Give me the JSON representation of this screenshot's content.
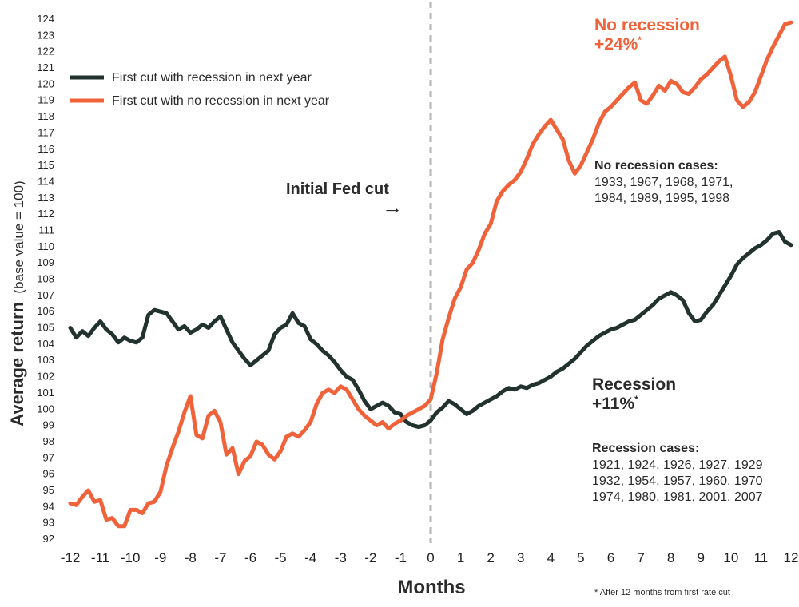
{
  "chart_data": {
    "type": "line",
    "xlabel": "Months",
    "ylabel": "Average return",
    "ylabel_note": "(base value = 100)",
    "xlim": [
      -12,
      12
    ],
    "ylim": [
      92,
      124
    ],
    "x_ticks": [
      "-12",
      "-11",
      "-10",
      "-9",
      "-8",
      "-7",
      "-6",
      "-5",
      "-4",
      "-3",
      "-2",
      "-1",
      "0",
      "1",
      "2",
      "3",
      "4",
      "5",
      "6",
      "7",
      "8",
      "9",
      "10",
      "11",
      "12"
    ],
    "y_ticks": [
      "92",
      "93",
      "94",
      "95",
      "96",
      "97",
      "98",
      "99",
      "100",
      "101",
      "102",
      "103",
      "104",
      "105",
      "106",
      "107",
      "108",
      "109",
      "110",
      "111",
      "112",
      "113",
      "114",
      "115",
      "116",
      "117",
      "118",
      "119",
      "120",
      "121",
      "122",
      "123",
      "124"
    ],
    "grid": false,
    "legend_position": "top-left",
    "reference_line": {
      "x": 0,
      "style": "dashed",
      "label": "Initial Fed cut"
    },
    "series": [
      {
        "name": "First cut with recession in next year",
        "color": "#22322f",
        "x": [
          -12,
          -11.8,
          -11.6,
          -11.4,
          -11.2,
          -11,
          -10.8,
          -10.6,
          -10.4,
          -10.2,
          -10,
          -9.8,
          -9.6,
          -9.4,
          -9.2,
          -9,
          -8.8,
          -8.6,
          -8.4,
          -8.2,
          -8,
          -7.8,
          -7.6,
          -7.4,
          -7.2,
          -7,
          -6.8,
          -6.6,
          -6.4,
          -6.2,
          -6,
          -5.8,
          -5.6,
          -5.4,
          -5.2,
          -5,
          -4.8,
          -4.6,
          -4.4,
          -4.2,
          -4,
          -3.8,
          -3.6,
          -3.4,
          -3.2,
          -3,
          -2.8,
          -2.6,
          -2.4,
          -2.2,
          -2,
          -1.8,
          -1.6,
          -1.4,
          -1.2,
          -1,
          -0.8,
          -0.6,
          -0.4,
          -0.2,
          0,
          0.2,
          0.4,
          0.6,
          0.8,
          1,
          1.2,
          1.4,
          1.6,
          1.8,
          2,
          2.2,
          2.4,
          2.6,
          2.8,
          3,
          3.2,
          3.4,
          3.6,
          3.8,
          4,
          4.2,
          4.4,
          4.6,
          4.8,
          5,
          5.2,
          5.4,
          5.6,
          5.8,
          6,
          6.2,
          6.4,
          6.6,
          6.8,
          7,
          7.2,
          7.4,
          7.6,
          7.8,
          8,
          8.2,
          8.4,
          8.6,
          8.8,
          9,
          9.2,
          9.4,
          9.6,
          9.8,
          10,
          10.2,
          10.4,
          10.6,
          10.8,
          11,
          11.2,
          11.4,
          11.6,
          11.8,
          12
        ],
        "values": [
          105.0,
          104.4,
          104.8,
          104.5,
          105.0,
          105.4,
          104.9,
          104.6,
          104.1,
          104.4,
          104.2,
          104.1,
          104.4,
          105.8,
          106.1,
          106.0,
          105.9,
          105.4,
          104.9,
          105.1,
          104.7,
          104.9,
          105.2,
          105.0,
          105.4,
          105.7,
          104.9,
          104.1,
          103.6,
          103.1,
          102.7,
          103.0,
          103.3,
          103.6,
          104.6,
          105.0,
          105.2,
          105.9,
          105.3,
          105.1,
          104.3,
          104.0,
          103.6,
          103.3,
          102.9,
          102.4,
          102.0,
          101.8,
          101.2,
          100.5,
          100.0,
          100.2,
          100.4,
          100.2,
          99.8,
          99.7,
          99.2,
          99.0,
          98.9,
          99.0,
          99.3,
          99.8,
          100.1,
          100.5,
          100.3,
          100.0,
          99.7,
          99.9,
          100.2,
          100.4,
          100.6,
          100.8,
          101.1,
          101.3,
          101.2,
          101.4,
          101.3,
          101.5,
          101.6,
          101.8,
          102.0,
          102.3,
          102.5,
          102.8,
          103.1,
          103.5,
          103.9,
          104.2,
          104.5,
          104.7,
          104.9,
          105.0,
          105.2,
          105.4,
          105.5,
          105.8,
          106.1,
          106.4,
          106.8,
          107.0,
          107.2,
          107.0,
          106.7,
          105.9,
          105.4,
          105.5,
          106.0,
          106.4,
          107.0,
          107.6,
          108.2,
          108.9,
          109.3,
          109.6,
          109.9,
          110.1,
          110.4,
          110.8,
          110.9,
          110.3,
          110.1
        ]
      },
      {
        "name": "First cut with no recession in next year",
        "color": "#f0623a",
        "x": [
          -12,
          -11.8,
          -11.6,
          -11.4,
          -11.2,
          -11,
          -10.8,
          -10.6,
          -10.4,
          -10.2,
          -10,
          -9.8,
          -9.6,
          -9.4,
          -9.2,
          -9,
          -8.8,
          -8.6,
          -8.4,
          -8.2,
          -8,
          -7.8,
          -7.6,
          -7.4,
          -7.2,
          -7,
          -6.8,
          -6.6,
          -6.4,
          -6.2,
          -6,
          -5.8,
          -5.6,
          -5.4,
          -5.2,
          -5,
          -4.8,
          -4.6,
          -4.4,
          -4.2,
          -4,
          -3.8,
          -3.6,
          -3.4,
          -3.2,
          -3,
          -2.8,
          -2.6,
          -2.4,
          -2.2,
          -2,
          -1.8,
          -1.6,
          -1.4,
          -1.2,
          -1,
          -0.8,
          -0.6,
          -0.4,
          -0.2,
          0,
          0.2,
          0.4,
          0.6,
          0.8,
          1,
          1.2,
          1.4,
          1.6,
          1.8,
          2,
          2.2,
          2.4,
          2.6,
          2.8,
          3,
          3.2,
          3.4,
          3.6,
          3.8,
          4,
          4.2,
          4.4,
          4.6,
          4.8,
          5,
          5.2,
          5.4,
          5.6,
          5.8,
          6,
          6.2,
          6.4,
          6.6,
          6.8,
          7,
          7.2,
          7.4,
          7.6,
          7.8,
          8,
          8.2,
          8.4,
          8.6,
          8.8,
          9,
          9.2,
          9.4,
          9.6,
          9.8,
          10,
          10.2,
          10.4,
          10.6,
          10.8,
          11,
          11.2,
          11.4,
          11.6,
          11.8,
          12
        ],
        "values": [
          94.2,
          94.1,
          94.6,
          95.0,
          94.3,
          94.4,
          93.2,
          93.3,
          92.8,
          92.8,
          93.8,
          93.8,
          93.6,
          94.2,
          94.3,
          94.9,
          96.5,
          97.6,
          98.6,
          99.8,
          100.8,
          98.4,
          98.2,
          99.6,
          99.9,
          99.2,
          97.2,
          97.6,
          96.0,
          96.8,
          97.1,
          98.0,
          97.8,
          97.2,
          96.9,
          97.4,
          98.3,
          98.5,
          98.3,
          98.7,
          99.2,
          100.3,
          101.0,
          101.2,
          101.0,
          101.4,
          101.2,
          100.6,
          100.0,
          99.6,
          99.3,
          99.0,
          99.2,
          98.8,
          99.1,
          99.3,
          99.6,
          99.8,
          100.0,
          100.2,
          100.6,
          102.2,
          104.3,
          105.6,
          106.8,
          107.5,
          108.6,
          109.0,
          109.8,
          110.8,
          111.4,
          112.8,
          113.4,
          113.8,
          114.1,
          114.6,
          115.4,
          116.3,
          116.9,
          117.4,
          117.8,
          117.2,
          116.6,
          115.3,
          114.5,
          115.0,
          115.8,
          116.6,
          117.6,
          118.3,
          118.6,
          119.0,
          119.4,
          119.8,
          120.1,
          119.0,
          118.8,
          119.3,
          119.9,
          119.6,
          120.2,
          120.0,
          119.5,
          119.4,
          119.8,
          120.3,
          120.6,
          121.0,
          121.4,
          121.7,
          120.5,
          119.0,
          118.6,
          118.9,
          119.5,
          120.5,
          121.5,
          122.3,
          123.0,
          123.7,
          123.8
        ]
      }
    ],
    "annotations": {
      "fed_cut_label": "Initial Fed cut",
      "fed_cut_arrow": "→",
      "no_recession_title": "No recession",
      "no_recession_value": "+24%",
      "no_recession_mark": "*",
      "no_recession_cases_title": "No recession cases:",
      "no_recession_cases": [
        "1933, 1967, 1968, 1971,",
        "1984, 1989, 1995, 1998"
      ],
      "recession_title": "Recession",
      "recession_value": "+11%",
      "recession_mark": "*",
      "recession_cases_title": "Recession cases:",
      "recession_cases": [
        "1921, 1924, 1926, 1927, 1929",
        "1932, 1954, 1957, 1960, 1970",
        "1974, 1980, 1981, 2001, 2007"
      ],
      "footnote": "* After 12 months from first rate cut"
    }
  }
}
